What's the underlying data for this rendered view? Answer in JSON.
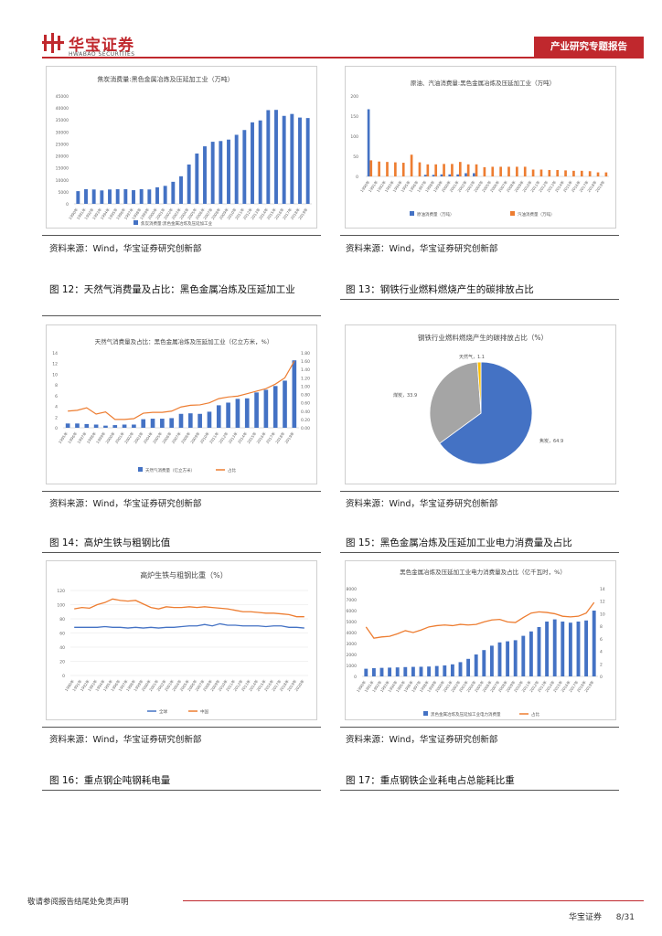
{
  "header": {
    "logo_cn": "华宝证券",
    "logo_en": "HWABAO SECURITIES",
    "report_type": "产业研究专题报告"
  },
  "source_text": "资料来源：Wind，华宝证券研究创新部",
  "captions": {
    "fig12": "图 12：天然气消费量及占比：黑色金属冶炼及压延加工业",
    "fig13": "图 13：钢铁行业燃料燃烧产生的碳排放占比",
    "fig14": "图 14：高炉生铁与粗钢比值",
    "fig15": "图 15：黑色金属冶炼及压延加工业电力消费量及占比",
    "fig16": "图 16：重点钢企吨钢耗电量",
    "fig17": "图 17：重点钢铁企业耗电占总能耗比重"
  },
  "footer": {
    "disclaimer": "敬请参阅报告结尾处免责声明",
    "company": "华宝证券",
    "page": "8/31"
  },
  "colors": {
    "blue": "#4472c4",
    "orange": "#ed7d31",
    "gray": "#a5a5a5",
    "yellow": "#ffc000",
    "brand": "#c0282d"
  },
  "chart_data": [
    {
      "id": "chart_coke",
      "type": "bar",
      "title": "焦炭消费量:黑色金属冶炼及压延加工业（万吨）",
      "categories": [
        "1990",
        "1991",
        "1992",
        "1993",
        "1994",
        "1995",
        "1996",
        "1997",
        "1998",
        "1999",
        "2000",
        "2001",
        "2002",
        "2003",
        "2004",
        "2005",
        "2006",
        "2007",
        "2008",
        "2009",
        "2010",
        "2011",
        "2012",
        "2013",
        "2014",
        "2015",
        "2016",
        "2017",
        "2018",
        "2019"
      ],
      "x_ticks": [
        "1990年",
        "1991年",
        "1992年",
        "1993年",
        "1994年",
        "1995年",
        "1996年",
        "1997年",
        "1998年",
        "1999年",
        "2000年",
        "2001年",
        "2002年",
        "2003年",
        "2004年",
        "2005年",
        "2006年",
        "2007年",
        "2008年",
        "2009年",
        "2010年",
        "2011年",
        "2012年",
        "2013年",
        "2014年",
        "2015年",
        "2016年",
        "2017年",
        "2018年",
        "2019年"
      ],
      "series": [
        {
          "name": "焦炭消费量:黑色金属冶炼及压延加工业",
          "values": [
            5300,
            6100,
            6000,
            5600,
            6000,
            6100,
            6100,
            5700,
            6100,
            6000,
            6900,
            7500,
            9200,
            11500,
            16400,
            21000,
            24000,
            25900,
            26200,
            26800,
            28800,
            30800,
            34000,
            34800,
            39100,
            39200,
            36700,
            37500,
            36000,
            35800
          ]
        }
      ],
      "ylim": [
        0,
        45000
      ],
      "y_ticks": [
        "0",
        "5000",
        "10000",
        "15000",
        "20000",
        "25000",
        "30000",
        "35000",
        "40000",
        "45000"
      ]
    },
    {
      "id": "chart_oil",
      "type": "bar",
      "title": "原油、汽油消费量:黑色金属冶炼及压延加工业（万吨）",
      "categories": [
        "1990",
        "1991",
        "1992",
        "1993",
        "1994",
        "1995",
        "1996",
        "1997",
        "1998",
        "1999",
        "2000",
        "2001",
        "2002",
        "2003",
        "2004",
        "2005",
        "2006",
        "2007",
        "2008",
        "2009",
        "2010",
        "2011",
        "2012",
        "2013",
        "2014",
        "2015",
        "2016",
        "2017",
        "2018",
        "2019"
      ],
      "x_ticks": [
        "1990年",
        "1991年",
        "1992年",
        "1993年",
        "1994年",
        "1995年",
        "1996年",
        "1997年",
        "1998年",
        "1999年",
        "2000年",
        "2001年",
        "2002年",
        "2003年",
        "2004年",
        "2005年",
        "2006年",
        "2007年",
        "2008年",
        "2009年",
        "2010年",
        "2011年",
        "2012年",
        "2013年",
        "2014年",
        "2015年",
        "2016年",
        "2017年",
        "2018年",
        "2019年"
      ],
      "series": [
        {
          "name": "原油消费量（万吨）",
          "values": [
            167,
            0,
            0,
            0,
            0,
            0,
            0,
            4,
            4,
            5,
            5,
            5,
            8,
            8,
            0,
            0,
            0,
            0,
            0,
            0,
            0,
            0,
            0,
            0,
            0,
            0,
            0,
            0,
            0,
            0
          ]
        },
        {
          "name": "汽油消费量（万吨）",
          "values": [
            40,
            37,
            36,
            35,
            34,
            54,
            35,
            30,
            30,
            31,
            31,
            36,
            30,
            30,
            23,
            24,
            24,
            24,
            24,
            24,
            17,
            17,
            16,
            16,
            15,
            14,
            14,
            13,
            10,
            10
          ]
        }
      ],
      "ylim": [
        0,
        200
      ],
      "y_ticks": [
        "0",
        "50",
        "100",
        "150",
        "200"
      ]
    },
    {
      "id": "chart_gas",
      "type": "bar+line",
      "title": "天然气消费量及占比：黑色金属冶炼及压延加工业（亿立方米，%）",
      "categories": [
        "1995",
        "1996",
        "1997",
        "1998",
        "1999",
        "2000",
        "2001",
        "2002",
        "2003",
        "2004",
        "2005",
        "2006",
        "2007",
        "2008",
        "2009",
        "2010",
        "2011",
        "2012",
        "2013",
        "2014",
        "2015",
        "2016",
        "2017",
        "2018",
        "2019"
      ],
      "x_ticks": [
        "1995年",
        "1996年",
        "1997年",
        "1998年",
        "1999年",
        "2000年",
        "2001年",
        "2002年",
        "2003年",
        "2004年",
        "2005年",
        "2006年",
        "2007年",
        "2008年",
        "2009年",
        "2010年",
        "2011年",
        "2012年",
        "2013年",
        "2014年",
        "2015年",
        "2016年",
        "2017年",
        "2018年",
        "2019年"
      ],
      "series": [
        {
          "name": "天然气消费量（亿立方米）",
          "axis": "left",
          "values": [
            0.8,
            0.8,
            0.7,
            0.6,
            0.4,
            0.5,
            0.6,
            0.6,
            1.6,
            1.7,
            1.7,
            1.8,
            2.6,
            2.7,
            2.6,
            3.0,
            4.2,
            4.7,
            5.4,
            5.5,
            6.6,
            7.1,
            7.8,
            8.8,
            12.6
          ]
        },
        {
          "name": "占比",
          "axis": "right",
          "values": [
            0.4,
            0.42,
            0.48,
            0.33,
            0.38,
            0.2,
            0.2,
            0.22,
            0.35,
            0.37,
            0.37,
            0.4,
            0.5,
            0.54,
            0.55,
            0.6,
            0.7,
            0.74,
            0.76,
            0.82,
            0.88,
            0.94,
            1.05,
            1.2,
            1.6
          ]
        }
      ],
      "ylim_left": [
        0,
        14
      ],
      "ylim_right": [
        0,
        1.8
      ],
      "y_ticks_left": [
        "0",
        "2",
        "4",
        "6",
        "8",
        "10",
        "12",
        "14"
      ],
      "y_ticks_right": [
        "0.00",
        "0.20",
        "0.40",
        "0.60",
        "0.80",
        "1.00",
        "1.20",
        "1.40",
        "1.60",
        "1.80"
      ]
    },
    {
      "id": "chart_pie",
      "type": "pie",
      "title": "钢铁行业燃料燃烧产生的碳排放占比（%）",
      "labels": [
        "焦炭",
        "煤炭",
        "天然气"
      ],
      "values": [
        64.9,
        33.9,
        1.1
      ],
      "value_labels": [
        "焦炭，64.9",
        "煤炭，33.9",
        "天然气，1.1"
      ]
    },
    {
      "id": "chart_ratio",
      "type": "line",
      "title": "高炉生铁与粗钢比重（%）",
      "categories": [
        "1990",
        "1991",
        "1992",
        "1993",
        "1994",
        "1995",
        "1996",
        "1997",
        "1998",
        "1999",
        "2000",
        "2001",
        "2002",
        "2003",
        "2004",
        "2005",
        "2006",
        "2007",
        "2008",
        "2009",
        "2010",
        "2011",
        "2012",
        "2013",
        "2014",
        "2015",
        "2016",
        "2017",
        "2018",
        "2019",
        "2020"
      ],
      "x_ticks": [
        "1990年",
        "1991年",
        "1992年",
        "1993年",
        "1994年",
        "1995年",
        "1996年",
        "1997年",
        "1998年",
        "1999年",
        "2000年",
        "2001年",
        "2002年",
        "2003年",
        "2004年",
        "2005年",
        "2006年",
        "2007年",
        "2008年",
        "2009年",
        "2010年",
        "2011年",
        "2012年",
        "2013年",
        "2014年",
        "2015年",
        "2016年",
        "2017年",
        "2018年",
        "2019年",
        "2020年"
      ],
      "series": [
        {
          "name": "全球",
          "values": [
            68,
            68,
            68,
            68,
            69,
            68,
            68,
            67,
            68,
            67,
            68,
            67,
            68,
            68,
            69,
            70,
            70,
            72,
            70,
            73,
            71,
            71,
            70,
            70,
            70,
            69,
            70,
            70,
            68,
            68,
            67
          ]
        },
        {
          "name": "中国",
          "values": [
            94,
            96,
            95,
            100,
            103,
            108,
            106,
            105,
            106,
            101,
            96,
            94,
            97,
            96,
            96,
            97,
            96,
            97,
            96,
            95,
            94,
            92,
            90,
            90,
            89,
            88,
            88,
            87,
            86,
            83,
            83
          ]
        }
      ],
      "ylim": [
        0,
        120
      ],
      "y_ticks": [
        "0",
        "20",
        "40",
        "60",
        "80",
        "100",
        "120"
      ]
    },
    {
      "id": "chart_power",
      "type": "bar+line",
      "title": "黑色金属冶炼及压延加工业电力消费量及占比（亿千瓦时，%）",
      "categories": [
        "1990",
        "1991",
        "1992",
        "1993",
        "1994",
        "1995",
        "1996",
        "1997",
        "1998",
        "1999",
        "2000",
        "2001",
        "2002",
        "2003",
        "2004",
        "2005",
        "2006",
        "2007",
        "2008",
        "2009",
        "2010",
        "2011",
        "2012",
        "2013",
        "2014",
        "2015",
        "2016",
        "2017",
        "2018",
        "2019"
      ],
      "x_ticks": [
        "1990年",
        "1991年",
        "1992年",
        "1993年",
        "1994年",
        "1995年",
        "1996年",
        "1997年",
        "1998年",
        "1999年",
        "2000年",
        "2001年",
        "2002年",
        "2003年",
        "2004年",
        "2005年",
        "2006年",
        "2007年",
        "2008年",
        "2009年",
        "2010年",
        "2011年",
        "2012年",
        "2013年",
        "2014年",
        "2015年",
        "2016年",
        "2017年",
        "2018年",
        "2019年"
      ],
      "series": [
        {
          "name": "黑色金属冶炼及压延加工业电力消费量",
          "axis": "left",
          "values": [
            700,
            750,
            780,
            800,
            820,
            850,
            870,
            880,
            900,
            950,
            1000,
            1100,
            1300,
            1600,
            2000,
            2400,
            2800,
            3100,
            3200,
            3300,
            3700,
            4100,
            4500,
            5000,
            5200,
            5000,
            4900,
            5000,
            5100,
            6000
          ]
        },
        {
          "name": "占比",
          "axis": "right",
          "values": [
            7.9,
            6.1,
            6.3,
            6.4,
            6.8,
            7.3,
            7.0,
            7.4,
            7.9,
            8.1,
            8.2,
            8.1,
            8.3,
            8.2,
            8.3,
            8.7,
            9.0,
            9.1,
            8.7,
            8.6,
            9.4,
            10.1,
            10.3,
            10.2,
            10.0,
            9.6,
            9.5,
            9.6,
            10.1,
            11.8
          ]
        }
      ],
      "ylim_left": [
        0,
        8000
      ],
      "ylim_right": [
        0,
        14
      ],
      "y_ticks_left": [
        "0",
        "1000",
        "2000",
        "3000",
        "4000",
        "5000",
        "6000",
        "7000",
        "8000"
      ],
      "y_ticks_right": [
        "0",
        "2",
        "4",
        "6",
        "8",
        "10",
        "12",
        "14"
      ]
    }
  ]
}
